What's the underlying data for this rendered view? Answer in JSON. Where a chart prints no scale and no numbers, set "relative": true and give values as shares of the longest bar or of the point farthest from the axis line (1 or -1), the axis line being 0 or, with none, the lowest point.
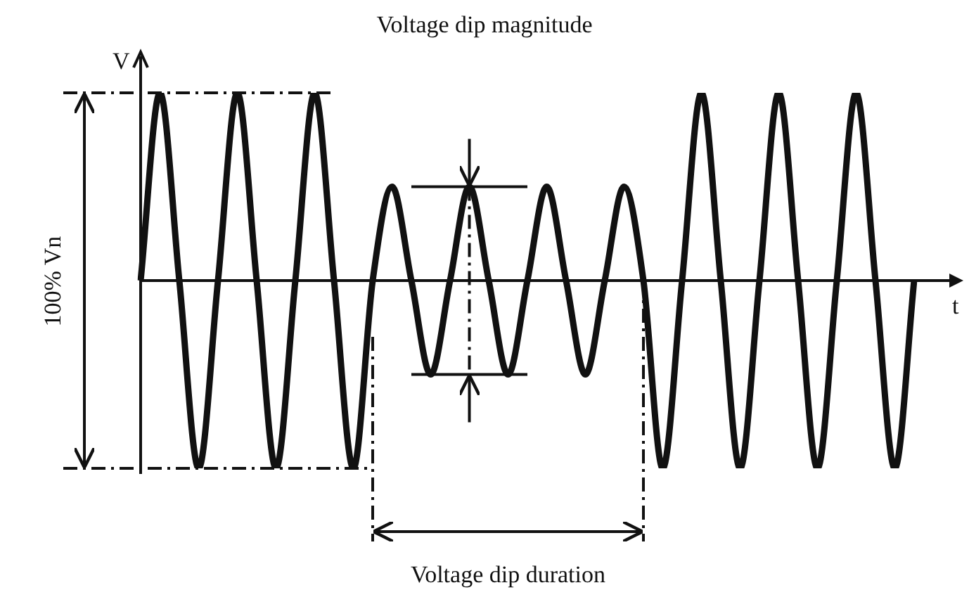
{
  "chart_data": {
    "type": "line",
    "relative": true,
    "xlabel": "t",
    "ylabel": "V",
    "annotations": [
      "Voltage dip magnitude",
      "Voltage dip duration",
      "100% Vn"
    ],
    "categories": [
      null,
      null,
      null,
      null,
      null,
      null,
      null,
      null,
      null,
      null,
      null,
      null,
      null,
      null,
      null,
      null,
      null,
      null,
      null,
      null,
      null,
      null,
      null,
      null,
      null,
      null,
      null,
      null,
      null,
      null,
      null,
      null,
      null,
      null,
      null,
      null,
      null,
      null,
      null,
      null,
      null
    ],
    "series": [
      {
        "color": "#111111",
        "values": [
          0,
          1,
          0,
          -1,
          0,
          1,
          0,
          -1,
          0,
          1,
          0,
          -1,
          0,
          0.5,
          0,
          -0.5,
          0,
          0.5,
          0,
          -0.5,
          0,
          0.5,
          0,
          -0.5,
          0,
          0.5,
          0,
          -1,
          0,
          1,
          0,
          -1,
          0,
          1,
          0,
          -1,
          0,
          1,
          0,
          -1,
          0
        ]
      }
    ],
    "ref_lines": [
      {
        "axis": "y",
        "value": 0.5
      },
      {
        "axis": "y",
        "value": -0.5
      }
    ],
    "marker": "none",
    "line_style": "solid",
    "legend": false
  }
}
